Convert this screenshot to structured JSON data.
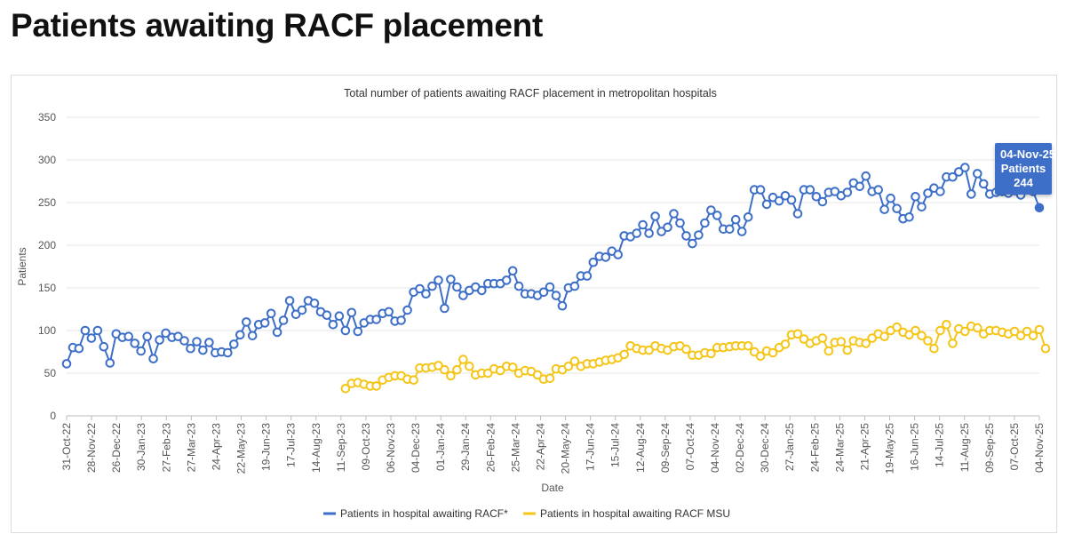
{
  "page": {
    "title": "Patients awaiting RACF placement"
  },
  "tooltip": {
    "date": "04-Nov-25",
    "series": "Patients",
    "value": "244"
  },
  "chart_data": {
    "type": "line",
    "title": "Total number of patients awaiting RACF placement in metropolitan hospitals",
    "xlabel": "Date",
    "ylabel": "Patients",
    "ylim": [
      0,
      350
    ],
    "yticks": [
      0,
      50,
      100,
      150,
      200,
      250,
      300,
      350
    ],
    "grid": true,
    "legend_position": "bottom",
    "x_tick_labels": [
      "31-Oct-22",
      "28-Nov-22",
      "26-Dec-22",
      "30-Jan-23",
      "27-Feb-23",
      "27-Mar-23",
      "24-Apr-23",
      "22-May-23",
      "19-Jun-23",
      "17-Jul-23",
      "14-Aug-23",
      "11-Sep-23",
      "09-Oct-23",
      "06-Nov-23",
      "04-Dec-23",
      "01-Jan-24",
      "29-Jan-24",
      "26-Feb-24",
      "25-Mar-24",
      "22-Apr-24",
      "20-May-24",
      "17-Jun-24",
      "15-Jul-24",
      "12-Aug-24",
      "09-Sep-24",
      "07-Oct-24",
      "04-Nov-24",
      "02-Dec-24",
      "30-Dec-24",
      "27-Jan-25",
      "24-Feb-25",
      "24-Mar-25",
      "21-Apr-25",
      "19-May-25",
      "16-Jun-25",
      "14-Jul-25",
      "11-Aug-25",
      "09-Sep-25",
      "07-Oct-25",
      "04-Nov-25"
    ],
    "n_points": 158,
    "series": [
      {
        "name": "Patients in hospital awaiting RACF*",
        "color": "#3d6fc9",
        "start_index": 0,
        "values": [
          61,
          80,
          79,
          100,
          91,
          100,
          81,
          62,
          96,
          92,
          93,
          85,
          76,
          93,
          67,
          89,
          97,
          92,
          93,
          88,
          79,
          87,
          77,
          86,
          74,
          75,
          74,
          84,
          95,
          110,
          94,
          107,
          109,
          120,
          98,
          112,
          135,
          119,
          124,
          135,
          132,
          122,
          118,
          107,
          117,
          100,
          121,
          99,
          109,
          113,
          113,
          120,
          122,
          111,
          112,
          124,
          145,
          149,
          143,
          152,
          159,
          126,
          160,
          151,
          141,
          147,
          151,
          147,
          155,
          155,
          155,
          159,
          170,
          152,
          143,
          143,
          141,
          145,
          151,
          141,
          129,
          150,
          152,
          164,
          164,
          180,
          187,
          186,
          193,
          189,
          211,
          210,
          214,
          224,
          214,
          234,
          216,
          221,
          237,
          226,
          211,
          202,
          212,
          226,
          241,
          235,
          219,
          219,
          230,
          216,
          233,
          265,
          265,
          248,
          256,
          252,
          258,
          253,
          237,
          265,
          265,
          257,
          251,
          262,
          263,
          258,
          262,
          273,
          269,
          281,
          263,
          265,
          242,
          255,
          243,
          231,
          233,
          257,
          245,
          261,
          267,
          263,
          280,
          280,
          286,
          291,
          260,
          284,
          272,
          260,
          262,
          263,
          261,
          264,
          259,
          267,
          263,
          244
        ]
      },
      {
        "name": "Patients in hospital awaiting RACF MSU",
        "color": "#f5c518",
        "start_index": 45,
        "values": [
          32,
          38,
          39,
          37,
          35,
          35,
          42,
          45,
          47,
          47,
          43,
          42,
          56,
          56,
          57,
          59,
          54,
          47,
          54,
          66,
          58,
          48,
          50,
          50,
          55,
          53,
          58,
          57,
          50,
          53,
          52,
          48,
          43,
          44,
          55,
          54,
          58,
          64,
          58,
          61,
          61,
          63,
          65,
          66,
          68,
          72,
          82,
          79,
          77,
          77,
          82,
          79,
          77,
          81,
          82,
          78,
          71,
          71,
          74,
          73,
          80,
          80,
          81,
          82,
          82,
          82,
          75,
          70,
          76,
          74,
          80,
          84,
          95,
          96,
          90,
          85,
          88,
          91,
          76,
          86,
          87,
          77,
          88,
          86,
          85,
          91,
          96,
          93,
          100,
          104,
          98,
          95,
          100,
          94,
          88,
          79,
          100,
          107,
          85,
          102,
          99,
          105,
          103,
          96,
          100,
          100,
          98,
          96,
          99,
          94,
          99,
          94,
          101,
          79
        ]
      }
    ]
  }
}
